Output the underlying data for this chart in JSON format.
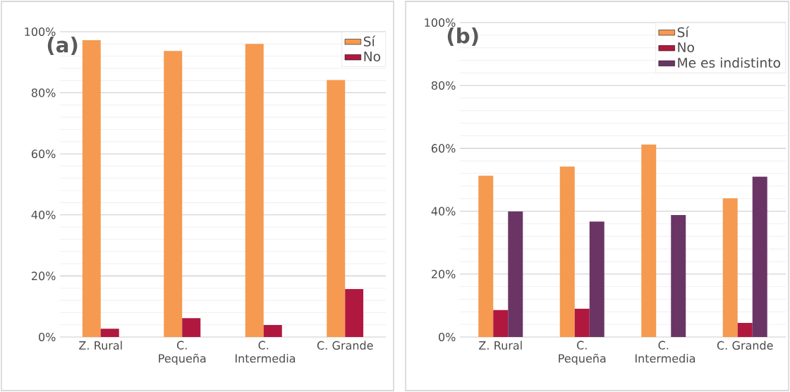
{
  "chart_data": [
    {
      "type": "bar",
      "title": "(a)",
      "categories": [
        "Z. Rural",
        "C. Pequeña",
        "C. Intermedia",
        "C. Grande"
      ],
      "series": [
        {
          "name": "Sí",
          "color": "#f59a50",
          "values": [
            97.2,
            93.7,
            96.0,
            84.2
          ]
        },
        {
          "name": "No",
          "color": "#b0183f",
          "values": [
            2.7,
            6.2,
            3.9,
            15.7
          ]
        }
      ],
      "ylim": [
        0,
        100
      ],
      "yticks": [
        {
          "value": 0,
          "label": "0%"
        },
        {
          "value": 20,
          "label": "20%"
        },
        {
          "value": 40,
          "label": "40%"
        },
        {
          "value": 60,
          "label": "60%"
        },
        {
          "value": 80,
          "label": "80%"
        },
        {
          "value": 100,
          "label": "100%"
        }
      ],
      "grid": "y",
      "legend": "top right"
    },
    {
      "type": "bar",
      "title": "(b)",
      "categories": [
        "Z. Rural",
        "C. Pequeña",
        "C. Intermedia",
        "C. Grande"
      ],
      "series": [
        {
          "name": "Sí",
          "color": "#f59a50",
          "values": [
            51.3,
            54.2,
            61.2,
            44.1
          ]
        },
        {
          "name": "No",
          "color": "#b0183f",
          "values": [
            8.6,
            9.0,
            0,
            4.5
          ]
        },
        {
          "name": "Me es indistinto",
          "color": "#6a3565",
          "values": [
            39.9,
            36.7,
            38.8,
            51.0
          ]
        }
      ],
      "ylim": [
        0,
        100
      ],
      "yticks": [
        {
          "value": 0,
          "label": "0%"
        },
        {
          "value": 20,
          "label": "20%"
        },
        {
          "value": 40,
          "label": "40%"
        },
        {
          "value": 60,
          "label": "60%"
        },
        {
          "value": 80,
          "label": "80%"
        },
        {
          "value": 100,
          "label": "100%"
        }
      ],
      "grid": "y",
      "legend": "top right"
    }
  ]
}
